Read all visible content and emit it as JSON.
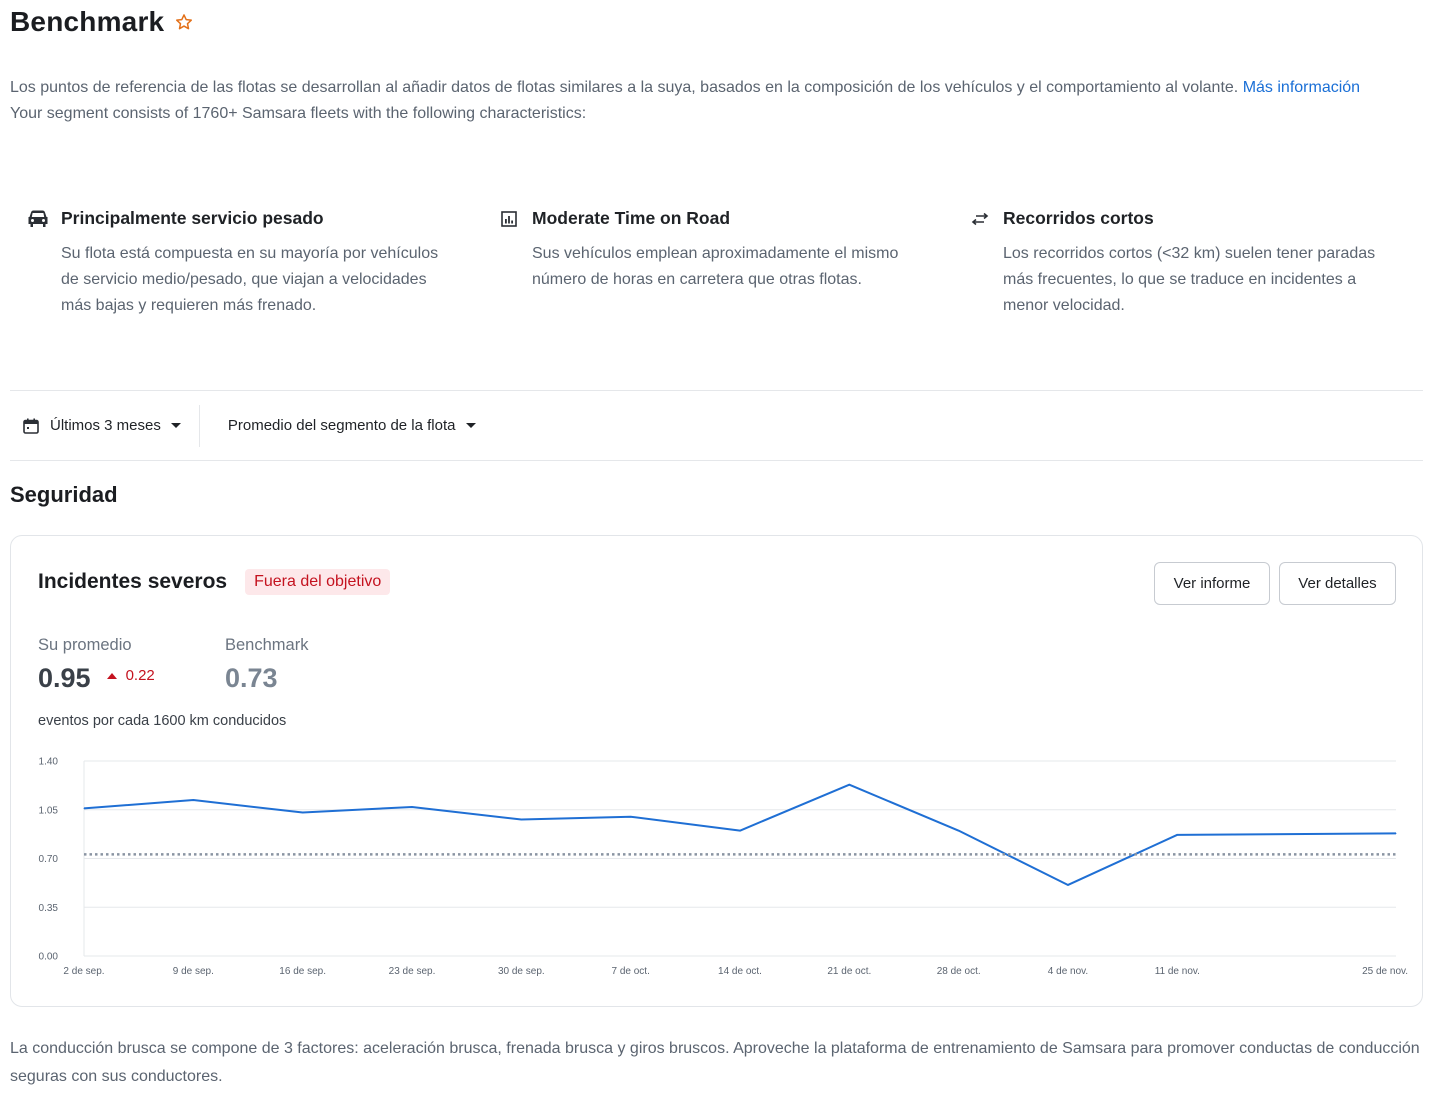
{
  "header": {
    "title": "Benchmark",
    "favorite_icon": "star-outline-icon",
    "favorite_color": "#e3711a"
  },
  "intro": {
    "description": "Los puntos de referencia de las flotas se desarrollan al añadir datos de flotas similares a la suya, basados en la composición de los vehículos y el comportamiento al volante.",
    "more_link": "Más información",
    "segment": "Your segment consists of 1760+ Samsara fleets with the following characteristics:"
  },
  "characteristics": [
    {
      "icon": "truck-icon",
      "title": "Principalmente servicio pesado",
      "description": "Su flota está compuesta en su mayoría por vehículos de servicio medio/pesado, que viajan a velocidades más bajas y requieren más frenado."
    },
    {
      "icon": "bar-chart-icon",
      "title": "Moderate Time on Road",
      "description": "Sus vehículos emplean aproximadamente el mismo número de horas en carretera que otras flotas."
    },
    {
      "icon": "swap-arrows-icon",
      "title": "Recorridos cortos",
      "description": "Los recorridos cortos (<32 km) suelen tener paradas más frecuentes, lo que se traduce en incidentes a menor velocidad."
    }
  ],
  "filters": {
    "date_range": "Últimos 3 meses",
    "comparison": "Promedio del segmento de la flota"
  },
  "section": {
    "title": "Seguridad"
  },
  "card": {
    "title": "Incidentes severos",
    "status_badge": "Fuera del objetivo",
    "report_button": "Ver informe",
    "details_button": "Ver detalles",
    "average_label": "Su promedio",
    "average_value": "0.95",
    "delta_value": "0.22",
    "benchmark_label": "Benchmark",
    "benchmark_value": "0.73",
    "units": "eventos por cada 1600 km conducidos"
  },
  "colors": {
    "accent": "#1a6fd6",
    "line": "#1f6fd4",
    "danger": "#c4121f",
    "benchmark_line": "#8a94a2"
  },
  "chart_data": {
    "type": "line",
    "title": "",
    "xlabel": "",
    "ylabel": "",
    "ylim": [
      0,
      1.4
    ],
    "y_ticks": [
      "0.00",
      "0.35",
      "0.70",
      "1.05",
      "1.40"
    ],
    "x_tick_labels": [
      "2 de sep.",
      "9 de sep.",
      "16 de sep.",
      "23 de sep.",
      "30 de sep.",
      "7 de oct.",
      "14 de oct.",
      "21 de oct.",
      "28 de oct.",
      "4 de nov.",
      "11 de nov.",
      "25 de nov."
    ],
    "x_tick_positions": [
      0,
      1,
      2,
      3,
      4,
      5,
      6,
      7,
      8,
      9,
      10,
      11.9
    ],
    "series": [
      {
        "name": "Su promedio",
        "style": "solid",
        "x": [
          0,
          1,
          2,
          3,
          4,
          5,
          6,
          7,
          8,
          9,
          10,
          12
        ],
        "values": [
          1.06,
          1.12,
          1.03,
          1.07,
          0.98,
          1.0,
          0.9,
          1.23,
          0.9,
          0.51,
          0.87,
          0.88
        ]
      },
      {
        "name": "Benchmark",
        "style": "dotted",
        "x": [
          0,
          12
        ],
        "values": [
          0.73,
          0.73
        ]
      }
    ]
  },
  "footer": {
    "note": "La conducción brusca se compone de 3 factores: aceleración brusca, frenada brusca y giros bruscos. Aproveche la plataforma de entrenamiento de Samsara para promover conductas de conducción seguras con sus conductores."
  }
}
